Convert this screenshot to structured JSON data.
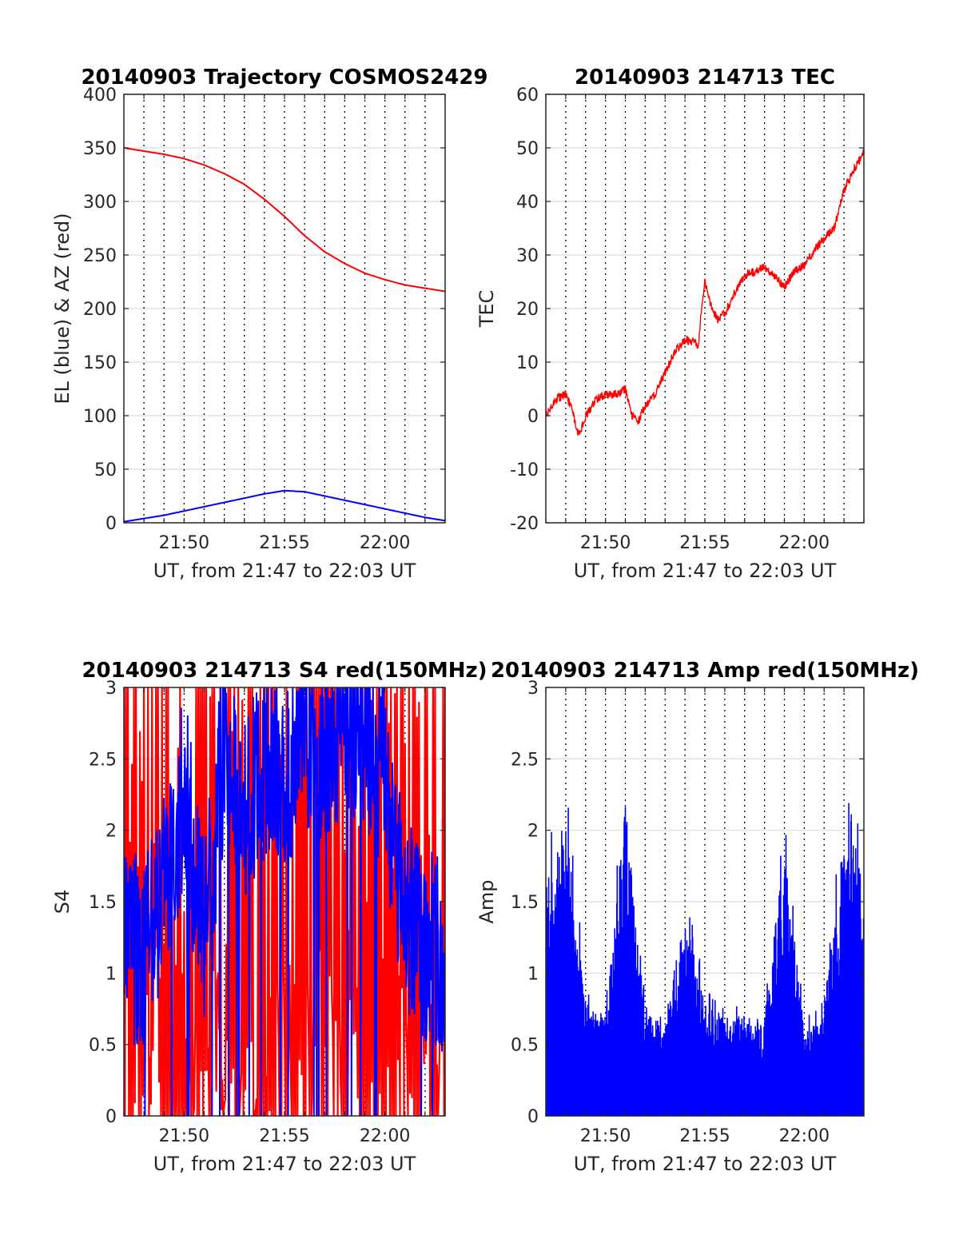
{
  "chart_data": [
    {
      "type": "line",
      "title": "20140903 Trajectory COSMOS2429",
      "xlabel": "UT, from 21:47 to 22:03 UT",
      "ylabel": "EL (blue) & AZ (red)",
      "xlim": [
        "21:47",
        "22:03"
      ],
      "ylim": [
        0,
        400
      ],
      "xticks": [
        "21:50",
        "21:55",
        "22:00"
      ],
      "yticks": [
        "0",
        "50",
        "100",
        "150",
        "200",
        "250",
        "300",
        "350",
        "400"
      ],
      "grid": true,
      "series": [
        {
          "color": "#ff0000",
          "x": [
            "21:47",
            "21:48",
            "21:49",
            "21:50",
            "21:51",
            "21:52",
            "21:53",
            "21:54",
            "21:55",
            "21:56",
            "21:57",
            "21:58",
            "21:59",
            "22:00",
            "22:01",
            "22:02",
            "22:03"
          ],
          "y": [
            350,
            347,
            344,
            340,
            334,
            326,
            316,
            302,
            286,
            268,
            253,
            242,
            233,
            227,
            222,
            219,
            216
          ]
        },
        {
          "color": "#0000ff",
          "x": [
            "21:47",
            "21:48",
            "21:49",
            "21:50",
            "21:51",
            "21:52",
            "21:53",
            "21:54",
            "21:55",
            "21:56",
            "21:57",
            "21:58",
            "21:59",
            "22:00",
            "22:01",
            "22:02",
            "22:03"
          ],
          "y": [
            1,
            4,
            7,
            11,
            15,
            19,
            23,
            27,
            30,
            29,
            25,
            21,
            17,
            13,
            9,
            5,
            2
          ]
        }
      ]
    },
    {
      "type": "line",
      "title": "20140903 214713 TEC",
      "xlabel": "UT, from 21:47 to 22:03 UT",
      "ylabel": "TEC",
      "xlim": [
        "21:47",
        "22:03"
      ],
      "ylim": [
        -20,
        60
      ],
      "xticks": [
        "21:50",
        "21:55",
        "22:00"
      ],
      "yticks": [
        "-20",
        "-10",
        "0",
        "10",
        "20",
        "30",
        "40",
        "50",
        "60"
      ],
      "grid": true,
      "series": [
        {
          "color": "#ff0000",
          "x": [
            "21:47:00",
            "21:47:30",
            "21:48:00",
            "21:48:20",
            "21:48:40",
            "21:49:00",
            "21:49:30",
            "21:50:00",
            "21:50:30",
            "21:51:00",
            "21:51:20",
            "21:51:40",
            "21:52:00",
            "21:52:30",
            "21:53:00",
            "21:53:30",
            "21:54:00",
            "21:54:20",
            "21:54:40",
            "21:54:50",
            "21:55:00",
            "21:55:20",
            "21:55:40",
            "21:56:00",
            "21:56:30",
            "21:57:00",
            "21:57:30",
            "21:58:00",
            "21:58:30",
            "21:59:00",
            "21:59:30",
            "22:00:00",
            "22:00:30",
            "22:01:00",
            "22:01:30",
            "22:02:00",
            "22:02:30",
            "22:03:00"
          ],
          "y": [
            0,
            3,
            4,
            1,
            -4,
            0,
            3,
            4,
            4,
            5,
            0,
            -1,
            2,
            4,
            8,
            12,
            14,
            14,
            13,
            20,
            25,
            20,
            18,
            19,
            23,
            26,
            27,
            28,
            26,
            24,
            27,
            28,
            31,
            33,
            35,
            42,
            46,
            49
          ]
        }
      ]
    },
    {
      "type": "line",
      "title": "20140903 214713 S4 red(150MHz)",
      "xlabel": "UT, from 21:47 to 22:03 UT",
      "ylabel": "S4",
      "xlim": [
        "21:47",
        "22:03"
      ],
      "ylim": [
        0,
        3
      ],
      "xticks": [
        "21:50",
        "21:55",
        "22:00"
      ],
      "yticks": [
        "0",
        "0.5",
        "1",
        "1.5",
        "2",
        "2.5",
        "3"
      ],
      "grid": true,
      "series": [
        {
          "color": "#ff0000",
          "x": [
            "21:47",
            "21:48",
            "21:49",
            "21:50",
            "21:51",
            "21:52",
            "21:53",
            "21:54",
            "21:55",
            "21:56",
            "21:57",
            "21:58",
            "21:59",
            "22:00",
            "22:01",
            "22:02",
            "22:03"
          ],
          "y": [
            3,
            0,
            3,
            0,
            3,
            0,
            3,
            0,
            3,
            0,
            3,
            0,
            3,
            0,
            3,
            0,
            3
          ]
        },
        {
          "color": "#0000ff",
          "x": [
            "21:47",
            "21:48",
            "21:49",
            "21:50",
            "21:51",
            "21:52",
            "21:53",
            "21:54",
            "21:55",
            "21:56",
            "21:57",
            "21:58",
            "21:59",
            "22:00",
            "22:01",
            "22:02",
            "22:03"
          ],
          "y": [
            1.2,
            1.1,
            1.6,
            2.3,
            1.2,
            2.6,
            2.2,
            2.5,
            2.4,
            2.7,
            2.6,
            2.8,
            2.7,
            2.4,
            1.4,
            1.2,
            1.1
          ]
        }
      ]
    },
    {
      "type": "bar",
      "title": "20140903 214713 Amp red(150MHz)",
      "xlabel": "UT, from 21:47 to 22:03 UT",
      "ylabel": "Amp",
      "xlim": [
        "21:47",
        "22:03"
      ],
      "ylim": [
        0,
        3
      ],
      "xticks": [
        "21:50",
        "21:55",
        "22:00"
      ],
      "yticks": [
        "0",
        "0.5",
        "1",
        "1.5",
        "2",
        "2.5",
        "3"
      ],
      "grid": true,
      "series": [
        {
          "color": "#0000ff",
          "x": [
            "21:47",
            "21:48",
            "21:49",
            "21:50",
            "21:51",
            "21:52",
            "21:53",
            "21:54",
            "21:55",
            "21:56",
            "21:57",
            "21:58",
            "21:59",
            "22:00",
            "22:01",
            "22:02",
            "22:03"
          ],
          "y": [
            1.6,
            2.1,
            0.8,
            0.7,
            2.2,
            0.7,
            0.7,
            1.4,
            0.8,
            0.7,
            0.7,
            0.7,
            1.9,
            0.6,
            0.7,
            2.0,
            1.8
          ]
        }
      ]
    }
  ]
}
